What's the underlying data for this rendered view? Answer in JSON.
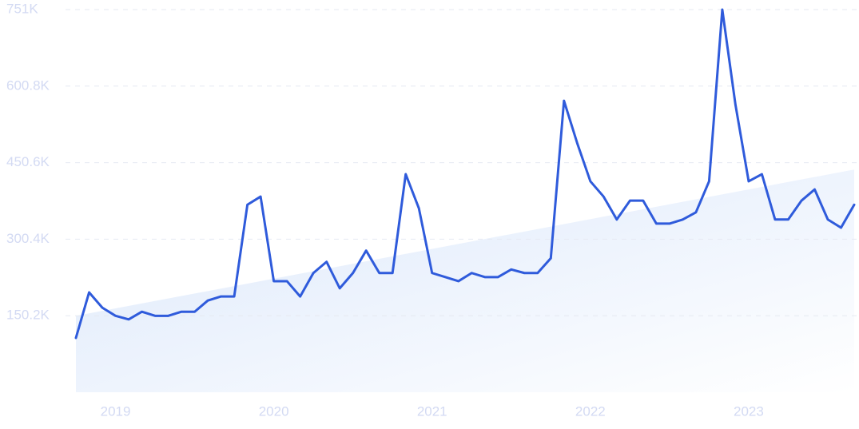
{
  "chart_data": {
    "type": "line",
    "categories": [
      null,
      null,
      null,
      "2019",
      null,
      null,
      null,
      null,
      null,
      null,
      null,
      null,
      null,
      null,
      null,
      "2020",
      null,
      null,
      null,
      null,
      null,
      null,
      null,
      null,
      null,
      null,
      null,
      "2021",
      null,
      null,
      null,
      null,
      null,
      null,
      null,
      null,
      null,
      null,
      null,
      "2022",
      null,
      null,
      null,
      null,
      null,
      null,
      null,
      null,
      null,
      null,
      null,
      "2023",
      null,
      null,
      null,
      null,
      null,
      null,
      null,
      null
    ],
    "series": [
      {
        "color": "#2f5bdb",
        "values": [
          106600,
          196000,
          166000,
          150000,
          143000,
          158000,
          150000,
          150000,
          158000,
          158000,
          180000,
          188000,
          188000,
          368000,
          384000,
          218000,
          218000,
          188000,
          234000,
          256000,
          204000,
          234000,
          278000,
          234000,
          234000,
          428000,
          361000,
          234000,
          226000,
          218000,
          234000,
          226000,
          226000,
          241000,
          234000,
          234000,
          263000,
          572000,
          489000,
          414000,
          384000,
          339000,
          376000,
          376000,
          331000,
          331000,
          339000,
          353000,
          414000,
          751000,
          564000,
          414000,
          428000,
          339000,
          339000,
          376000,
          398000,
          339000,
          323000,
          368000
        ]
      }
    ],
    "trend": [
      150000,
      437000
    ],
    "ylim": [
      0,
      751000
    ],
    "yticks": [
      {
        "value": 150200,
        "label": "150.2K"
      },
      {
        "value": 300400,
        "label": "300.4K"
      },
      {
        "value": 450600,
        "label": "450.6K"
      },
      {
        "value": 600800,
        "label": "600.8K"
      },
      {
        "value": 751000,
        "label": "751K"
      }
    ],
    "grid": true
  }
}
